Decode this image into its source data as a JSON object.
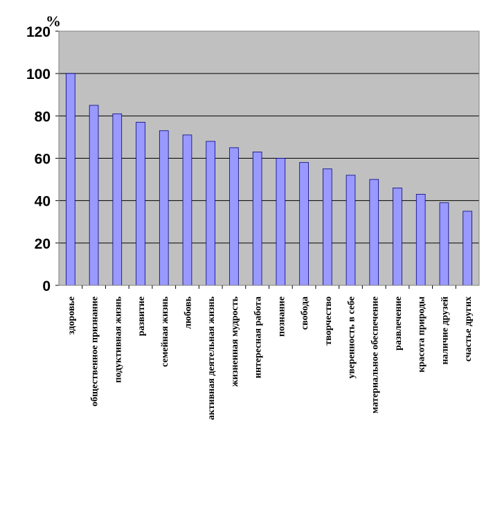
{
  "chart_data": {
    "type": "bar",
    "title": "",
    "xlabel": "",
    "ylabel": "%",
    "ylim": [
      0,
      120
    ],
    "yticks": [
      0,
      20,
      40,
      60,
      80,
      100,
      120
    ],
    "grid": true,
    "legend": "none",
    "categories": [
      "здоровье",
      "общественное признание",
      "подуктивная жизнь",
      "развитие",
      "семейная жизнь",
      "любовь",
      "активная деятельная жизнь",
      "жизненная мудрость",
      "интересная работа",
      "познание",
      "свобода",
      "творчество",
      "уверенность в себе",
      "материальное обеспечение",
      "развлечение",
      "красота природы",
      "наличие друзей",
      "счастье других"
    ],
    "series": [
      {
        "values": [
          100,
          85,
          81,
          77,
          73,
          71,
          68,
          65,
          63,
          60,
          58,
          55,
          52,
          50,
          46,
          43,
          39,
          35
        ]
      }
    ],
    "colors": {
      "bar": "#9999ff",
      "bar_stroke": "#000080",
      "plot_background": "#c0c0c0",
      "grid": "#000000"
    }
  }
}
